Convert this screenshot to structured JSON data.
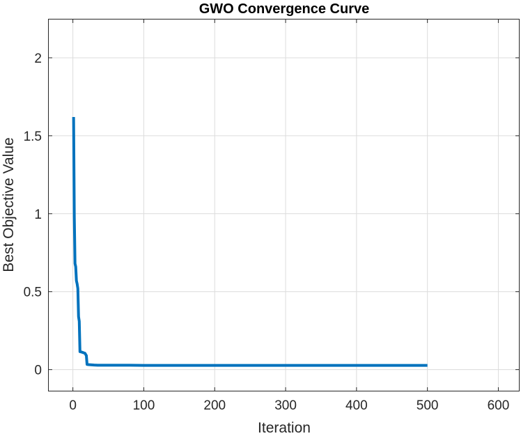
{
  "chart_data": {
    "type": "line",
    "title": "GWO Convergence Curve",
    "xlabel": "Iteration",
    "ylabel": "Best Objective Value",
    "xlim": [
      -35,
      630
    ],
    "ylim": [
      -0.14,
      2.25
    ],
    "xticks": [
      0,
      100,
      200,
      300,
      400,
      500,
      600
    ],
    "yticks": [
      0,
      0.5,
      1,
      1.5,
      2
    ],
    "grid": true,
    "series": [
      {
        "color": "#0072BD",
        "x": [
          1,
          2,
          3,
          4,
          5,
          6,
          7,
          8,
          9,
          10,
          12,
          14,
          15,
          17,
          19,
          20,
          22,
          25,
          30,
          35,
          40,
          50,
          60,
          80,
          100,
          150,
          200,
          300,
          400,
          500
        ],
        "y": [
          1.62,
          0.98,
          0.68,
          0.66,
          0.57,
          0.55,
          0.52,
          0.34,
          0.31,
          0.115,
          0.113,
          0.11,
          0.108,
          0.105,
          0.09,
          0.033,
          0.032,
          0.031,
          0.029,
          0.028,
          0.028,
          0.028,
          0.028,
          0.028,
          0.027,
          0.027,
          0.027,
          0.027,
          0.027,
          0.027
        ]
      }
    ]
  }
}
